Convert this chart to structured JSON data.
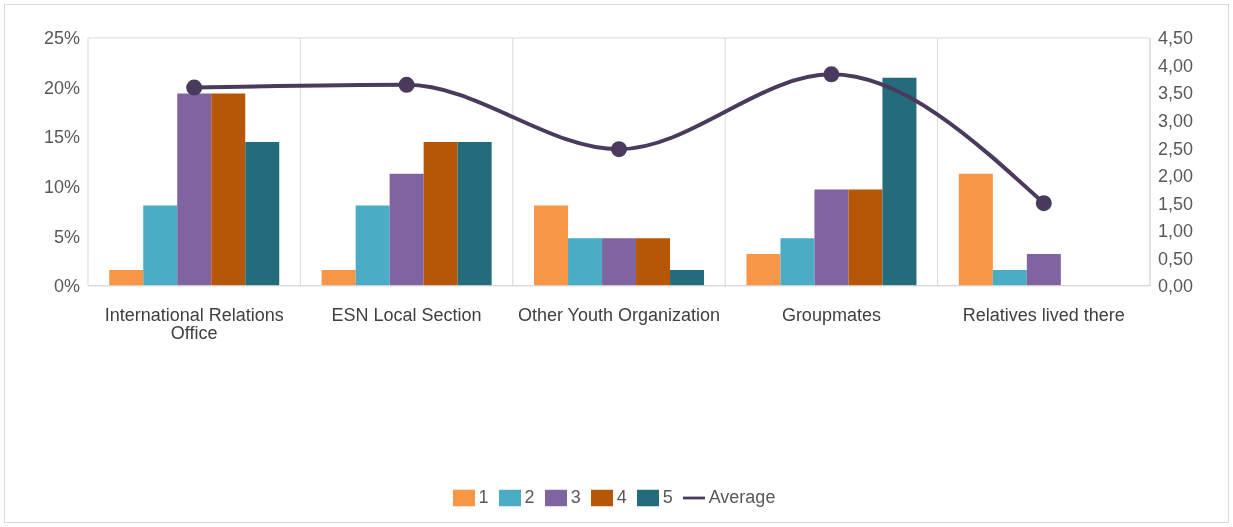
{
  "chart_data": {
    "type": "bar",
    "categories": [
      "International Relations Office",
      "ESN Local Section",
      "Other Youth Organization",
      "Groupmates",
      "Relatives lived there"
    ],
    "series": [
      {
        "name": "1",
        "color": "#f79646",
        "values": [
          1.6,
          1.6,
          8.1,
          3.2,
          11.3
        ]
      },
      {
        "name": "2",
        "color": "#4bacc6",
        "values": [
          8.1,
          8.1,
          4.8,
          4.8,
          1.6
        ]
      },
      {
        "name": "3",
        "color": "#8064a2",
        "values": [
          19.4,
          11.3,
          4.8,
          9.7,
          3.2
        ]
      },
      {
        "name": "4",
        "color": "#b65708",
        "values": [
          19.4,
          14.5,
          4.8,
          9.7,
          0
        ]
      },
      {
        "name": "5",
        "color": "#246b7c",
        "values": [
          14.5,
          14.5,
          1.6,
          21.0,
          0
        ]
      },
      {
        "name": "Average",
        "type": "line",
        "axis": "y2",
        "color": "#4a3a5e",
        "values": [
          3.6,
          3.65,
          2.48,
          3.84,
          1.5
        ]
      }
    ],
    "ylim": [
      0,
      25
    ],
    "yticks": [
      {
        "value": 0,
        "label": "0%"
      },
      {
        "value": 5,
        "label": "5%"
      },
      {
        "value": 10,
        "label": "10%"
      },
      {
        "value": 15,
        "label": "15%"
      },
      {
        "value": 20,
        "label": "20%"
      },
      {
        "value": 25,
        "label": "25%"
      }
    ],
    "y2lim": [
      0,
      4.5
    ],
    "y2ticks": [
      {
        "value": 0,
        "label": "0,00"
      },
      {
        "value": 0.5,
        "label": "0,50"
      },
      {
        "value": 1,
        "label": "1,00"
      },
      {
        "value": 1.5,
        "label": "1,50"
      },
      {
        "value": 2,
        "label": "2,00"
      },
      {
        "value": 2.5,
        "label": "2,50"
      },
      {
        "value": 3,
        "label": "3,00"
      },
      {
        "value": 3.5,
        "label": "3,50"
      },
      {
        "value": 4,
        "label": "4,00"
      },
      {
        "value": 4.5,
        "label": "4,50"
      }
    ],
    "grid": true,
    "legend": "bottom",
    "marker": "circle"
  }
}
